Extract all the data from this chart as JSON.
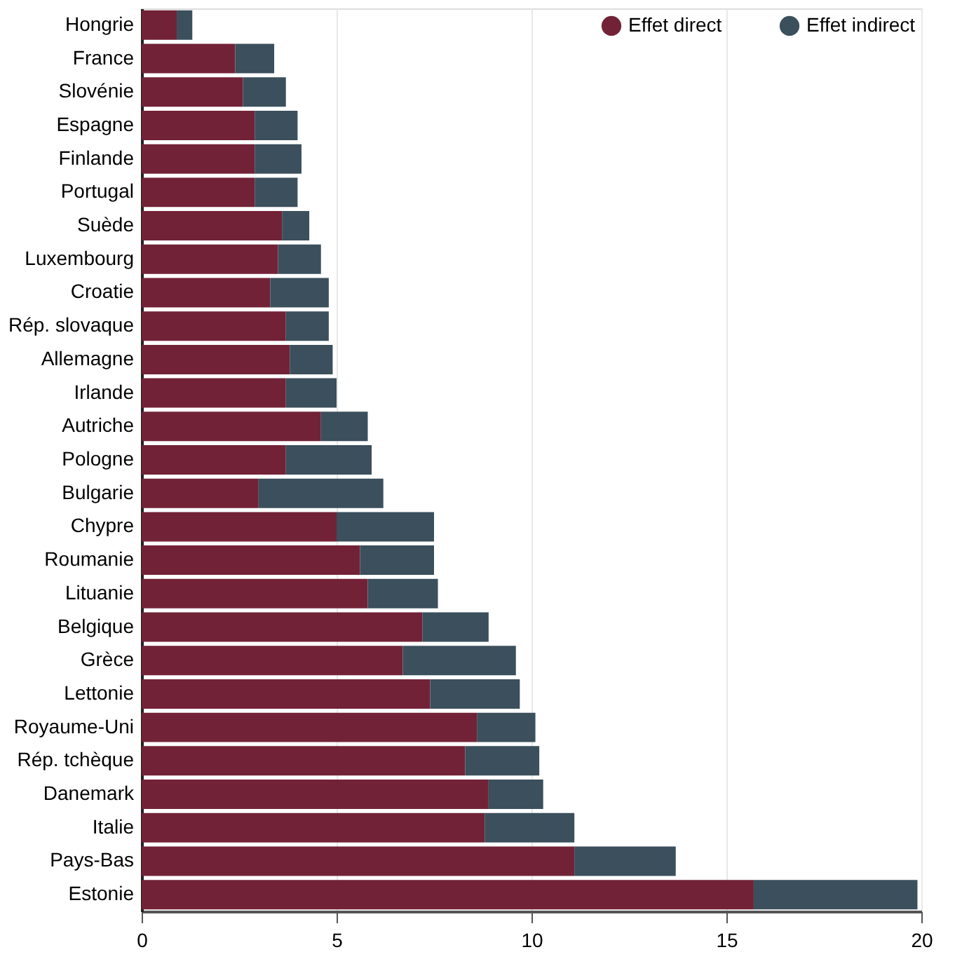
{
  "chart_data": {
    "type": "bar",
    "orientation": "horizontal",
    "stacked": true,
    "categories": [
      "Hongrie",
      "France",
      "Slovénie",
      "Espagne",
      "Finlande",
      "Portugal",
      "Suède",
      "Luxembourg",
      "Croatie",
      "Rép. slovaque",
      "Allemagne",
      "Irlande",
      "Autriche",
      "Pologne",
      "Bulgarie",
      "Chypre",
      "Roumanie",
      "Lituanie",
      "Belgique",
      "Grèce",
      "Lettonie",
      "Royaume-Uni",
      "Rép. tchèque",
      "Danemark",
      "Italie",
      "Pays-Bas",
      "Estonie"
    ],
    "series": [
      {
        "name": "Effet direct",
        "color": "#722237",
        "values": [
          0.9,
          2.4,
          2.6,
          2.9,
          2.9,
          2.9,
          3.6,
          3.5,
          3.3,
          3.7,
          3.8,
          3.7,
          4.6,
          3.7,
          3.0,
          5.0,
          5.6,
          5.8,
          7.2,
          6.7,
          7.4,
          8.6,
          8.3,
          8.9,
          8.8,
          11.1,
          15.7
        ]
      },
      {
        "name": "Effet indirect",
        "color": "#3b4f5c",
        "values": [
          0.4,
          1.0,
          1.1,
          1.1,
          1.2,
          1.1,
          0.7,
          1.1,
          1.5,
          1.1,
          1.1,
          1.3,
          1.2,
          2.2,
          3.2,
          2.5,
          1.9,
          1.8,
          1.7,
          2.9,
          2.3,
          1.5,
          1.9,
          1.4,
          2.3,
          2.6,
          4.2
        ]
      }
    ],
    "xlim": [
      0,
      20
    ],
    "xticks": [
      0,
      5,
      10,
      15,
      20
    ],
    "grid": "x",
    "legend": "top right"
  }
}
